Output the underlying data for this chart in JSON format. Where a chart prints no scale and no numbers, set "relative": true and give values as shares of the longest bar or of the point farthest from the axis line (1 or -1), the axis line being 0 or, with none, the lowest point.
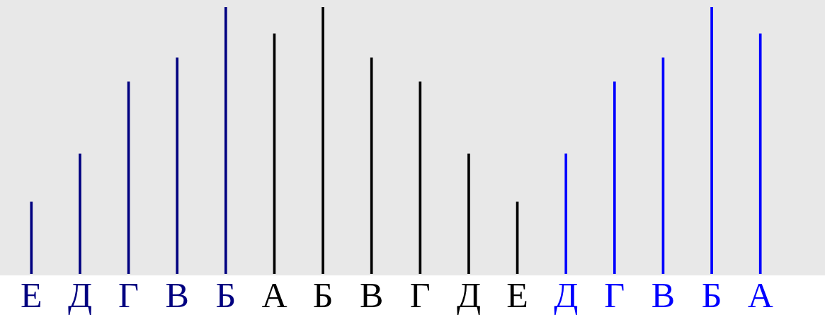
{
  "chart_data": {
    "type": "bar",
    "relative": true,
    "legend": false,
    "categories": [
      "Е",
      "Д",
      "Г",
      "В",
      "Б",
      "А",
      "Б",
      "В",
      "Г",
      "Д",
      "Е",
      "Д",
      "Г",
      "В",
      "Б",
      "А"
    ],
    "series": [
      {
        "color": "#000080",
        "values": [
          0.27,
          0.45,
          0.72,
          0.81,
          1.0,
          null,
          null,
          null,
          null,
          null,
          null,
          null,
          null,
          null,
          null,
          null
        ]
      },
      {
        "color": "#000000",
        "values": [
          null,
          null,
          null,
          null,
          null,
          0.9,
          1.0,
          0.81,
          0.72,
          0.45,
          0.27,
          null,
          null,
          null,
          null,
          null
        ]
      },
      {
        "color": "#0000ff",
        "values": [
          null,
          null,
          null,
          null,
          null,
          null,
          null,
          null,
          null,
          null,
          null,
          0.45,
          0.72,
          0.81,
          1.0,
          0.9
        ]
      }
    ]
  }
}
